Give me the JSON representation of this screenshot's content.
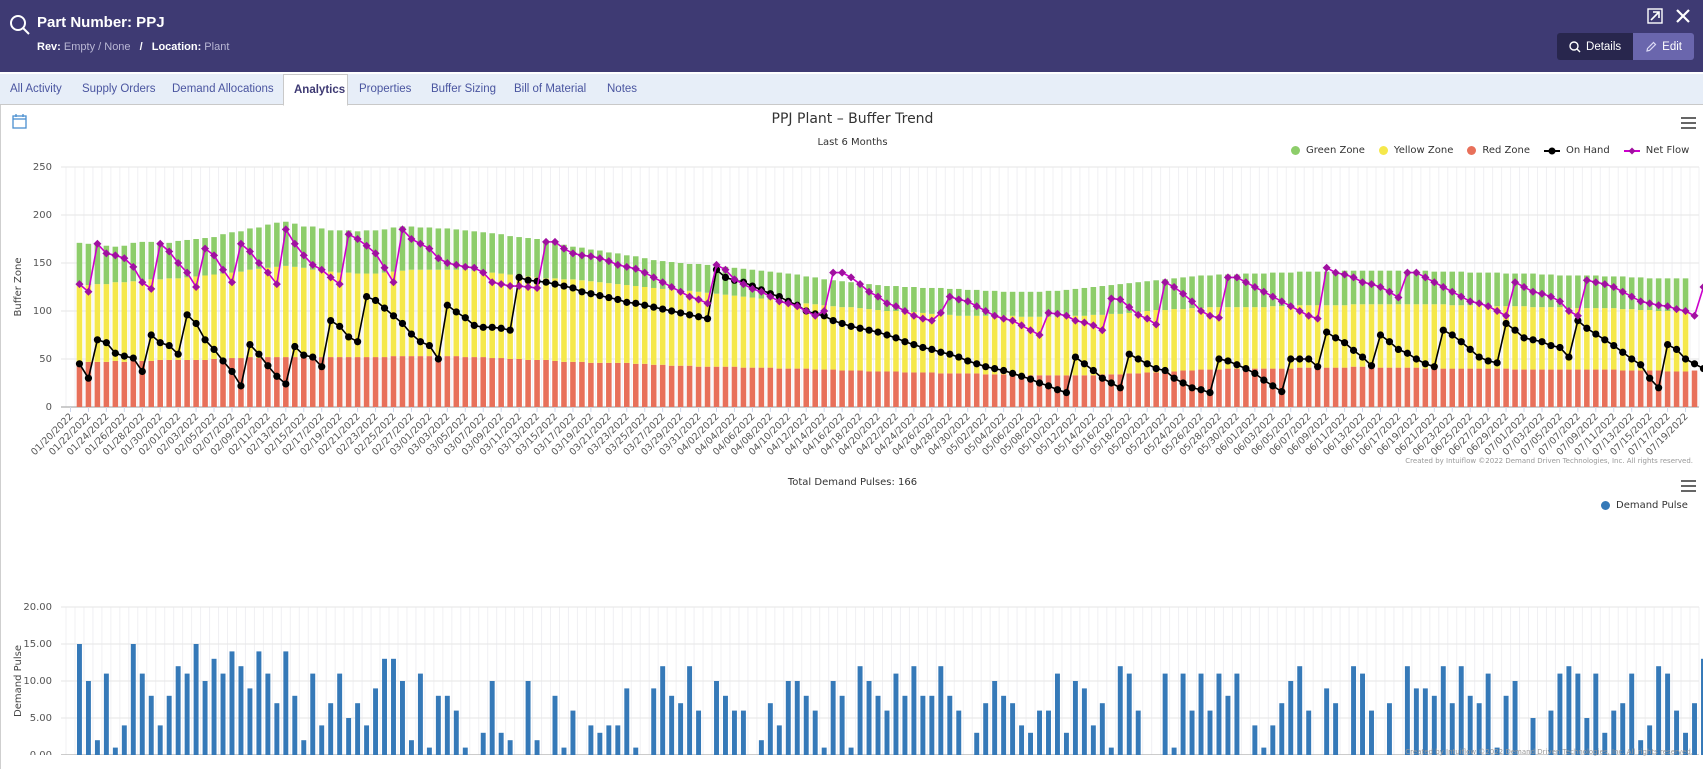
{
  "header": {
    "title": "Part Number: PPJ",
    "rev_label": "Rev:",
    "rev_value": "Empty / None",
    "separator": "/",
    "location_label": "Location:",
    "location_value": "Plant",
    "icons": {
      "search": "search-icon",
      "popout": "external-link-icon",
      "close": "close-icon"
    },
    "details_label": "Details",
    "edit_label": "Edit"
  },
  "tabs": [
    {
      "label": "All Activity",
      "active": false
    },
    {
      "label": "Supply Orders",
      "active": false
    },
    {
      "label": "Demand Allocations",
      "active": false
    },
    {
      "label": "Analytics",
      "active": true
    },
    {
      "label": "Properties",
      "active": false
    },
    {
      "label": "Buffer Sizing",
      "active": false
    },
    {
      "label": "Bill of Material",
      "active": false
    },
    {
      "label": "Notes",
      "active": false
    }
  ],
  "colors": {
    "header_bg": "#3e3a73",
    "green_zone": "#8dcd6a",
    "yellow_zone": "#f5e84b",
    "red_zone": "#e8705a",
    "on_hand": "#000000",
    "net_flow": "#cc00cc",
    "demand_pulse": "#3579b8"
  },
  "credits": "Created by Intuiflow ©2022 Demand Driven Technologies, Inc. All rights reserved.",
  "chart_data": [
    {
      "type": "bar",
      "stacked": true,
      "title": "PPJ Plant – Buffer Trend",
      "subtitle": "Last 6 Months",
      "xlabel": "",
      "ylabel": "Buffer Zone",
      "ylim": [
        0,
        250
      ],
      "yticks": [
        0,
        50,
        100,
        150,
        200,
        250
      ],
      "start_date": "2022-01-20",
      "days": 182,
      "xtick_every_days": 2,
      "grid": true,
      "legend_position": "top-right",
      "legend": [
        "Green Zone",
        "Yellow Zone",
        "Red Zone",
        "On Hand",
        "Net Flow"
      ],
      "red_zone_top": [
        null,
        46,
        47,
        47,
        47,
        48,
        47,
        48,
        48,
        48,
        49,
        49,
        49,
        49,
        49,
        49,
        50,
        50,
        51,
        51,
        52,
        51,
        52,
        52,
        52,
        52,
        52,
        52,
        52,
        52,
        52,
        52,
        52,
        52,
        52,
        52,
        53,
        53,
        53,
        53,
        53,
        53,
        53,
        53,
        52,
        52,
        52,
        51,
        51,
        50,
        50,
        49,
        49,
        49,
        48,
        47,
        47,
        47,
        46,
        46,
        46,
        46,
        46,
        45,
        45,
        44,
        44,
        43,
        43,
        43,
        42,
        42,
        42,
        42,
        42,
        41,
        41,
        41,
        41,
        40,
        40,
        40,
        40,
        39,
        39,
        39,
        38,
        38,
        38,
        37,
        37,
        37,
        37,
        36,
        36,
        36,
        36,
        35,
        35,
        35,
        35,
        35,
        34,
        34,
        34,
        34,
        34,
        33,
        33,
        33,
        33,
        33,
        33,
        33,
        33,
        34,
        34,
        34,
        35,
        35,
        36,
        36,
        37,
        37,
        38,
        38,
        39,
        39,
        39,
        40,
        40,
        40,
        40,
        40,
        40,
        40,
        40,
        41,
        41,
        41,
        41,
        41,
        41,
        42,
        42,
        41,
        41,
        41,
        41,
        41,
        41,
        40,
        40,
        40,
        40,
        40,
        40,
        40,
        40,
        40,
        40,
        39,
        39,
        39,
        39,
        39,
        39,
        39,
        39,
        39,
        39,
        39,
        39,
        38,
        38,
        38,
        38,
        38,
        37,
        37,
        37,
        38
      ],
      "yellow_zone_top": [
        null,
        126,
        127,
        128,
        128,
        130,
        130,
        131,
        132,
        133,
        133,
        134,
        134,
        135,
        136,
        137,
        138,
        139,
        140,
        141,
        143,
        144,
        145,
        146,
        147,
        146,
        145,
        143,
        142,
        141,
        140,
        140,
        139,
        139,
        139,
        140,
        141,
        142,
        143,
        143,
        143,
        143,
        143,
        143,
        143,
        142,
        141,
        140,
        139,
        138,
        137,
        136,
        135,
        134,
        134,
        133,
        133,
        132,
        131,
        130,
        129,
        128,
        127,
        126,
        125,
        124,
        123,
        122,
        121,
        121,
        120,
        119,
        118,
        117,
        116,
        115,
        114,
        113,
        112,
        111,
        110,
        109,
        108,
        107,
        106,
        105,
        104,
        104,
        103,
        102,
        101,
        100,
        100,
        99,
        99,
        98,
        97,
        96,
        96,
        95,
        95,
        95,
        95,
        95,
        95,
        95,
        94,
        94,
        94,
        94,
        94,
        95,
        95,
        95,
        96,
        96,
        97,
        97,
        98,
        99,
        100,
        101,
        101,
        102,
        102,
        103,
        103,
        104,
        104,
        104,
        104,
        104,
        104,
        104,
        105,
        105,
        105,
        106,
        106,
        106,
        106,
        106,
        106,
        107,
        107,
        107,
        107,
        107,
        107,
        107,
        107,
        107,
        107,
        107,
        106,
        106,
        106,
        106,
        106,
        105,
        105,
        105,
        105,
        104,
        104,
        104,
        104,
        103,
        103,
        103,
        103,
        103,
        103,
        102,
        102,
        101,
        101,
        100,
        100,
        100,
        100
      ],
      "green_zone_top": [
        null,
        171,
        170,
        170,
        168,
        167,
        168,
        171,
        172,
        172,
        170,
        171,
        173,
        174,
        175,
        176,
        177,
        180,
        182,
        183,
        186,
        187,
        190,
        192,
        193,
        191,
        188,
        188,
        186,
        184,
        184,
        184,
        183,
        184,
        184,
        185,
        187,
        188,
        188,
        187,
        187,
        186,
        186,
        185,
        184,
        183,
        182,
        181,
        180,
        178,
        177,
        176,
        175,
        173,
        171,
        169,
        167,
        166,
        164,
        163,
        161,
        160,
        158,
        157,
        155,
        153,
        152,
        151,
        150,
        149,
        149,
        148,
        147,
        146,
        145,
        144,
        143,
        142,
        141,
        140,
        139,
        138,
        136,
        135,
        133,
        132,
        131,
        130,
        129,
        128,
        127,
        126,
        126,
        125,
        125,
        124,
        124,
        124,
        123,
        123,
        122,
        122,
        121,
        121,
        120,
        120,
        120,
        120,
        120,
        121,
        121,
        122,
        123,
        124,
        125,
        126,
        127,
        128,
        129,
        130,
        131,
        132,
        133,
        134,
        135,
        136,
        137,
        137,
        138,
        138,
        138,
        139,
        139,
        139,
        140,
        140,
        140,
        141,
        141,
        141,
        141,
        141,
        142,
        142,
        142,
        142,
        142,
        142,
        142,
        142,
        142,
        142,
        141,
        141,
        141,
        141,
        140,
        140,
        140,
        140,
        139,
        139,
        139,
        139,
        138,
        138,
        137,
        137,
        137,
        137,
        137,
        136,
        136,
        136,
        135,
        135,
        134,
        134,
        134,
        134,
        134
      ],
      "on_hand": [
        null,
        45,
        30,
        70,
        67,
        56,
        53,
        51,
        37,
        75,
        67,
        64,
        55,
        96,
        87,
        70,
        60,
        48,
        37,
        22,
        65,
        55,
        43,
        32,
        24,
        63,
        54,
        52,
        42,
        90,
        84,
        73,
        68,
        115,
        111,
        103,
        95,
        87,
        76,
        68,
        64,
        50,
        106,
        99,
        93,
        85,
        83,
        83,
        82,
        80,
        135,
        132,
        131,
        130,
        128,
        126,
        124,
        120,
        118,
        116,
        114,
        112,
        109,
        108,
        106,
        104,
        102,
        100,
        98,
        96,
        94,
        92,
        143,
        135,
        132,
        130,
        126,
        122,
        118,
        115,
        110,
        106,
        100,
        97,
        95,
        90,
        87,
        84,
        82,
        80,
        78,
        75,
        72,
        68,
        65,
        62,
        60,
        57,
        55,
        52,
        48,
        45,
        42,
        40,
        38,
        35,
        32,
        29,
        25,
        22,
        18,
        15,
        52,
        45,
        38,
        30,
        25,
        20,
        55,
        50,
        45,
        40,
        38,
        30,
        25,
        20,
        18,
        15,
        50,
        48,
        44,
        40,
        35,
        28,
        22,
        16,
        50,
        50,
        50,
        42,
        78,
        72,
        67,
        59,
        52,
        43,
        75,
        68,
        60,
        56,
        50,
        45,
        42,
        80,
        75,
        68,
        60,
        52,
        48,
        46,
        87,
        80,
        72,
        70,
        68,
        64,
        62,
        52,
        90,
        82,
        76,
        70,
        64,
        57,
        50,
        44,
        30,
        20,
        65,
        60,
        50,
        45,
        40,
        85,
        82,
        80,
        75,
        68
      ],
      "net_flow": [
        null,
        128,
        120,
        170,
        160,
        158,
        155,
        146,
        130,
        123,
        170,
        162,
        150,
        140,
        125,
        165,
        158,
        143,
        130,
        170,
        162,
        150,
        140,
        128,
        185,
        170,
        158,
        148,
        143,
        135,
        128,
        180,
        175,
        168,
        160,
        145,
        130,
        185,
        175,
        170,
        165,
        155,
        150,
        148,
        146,
        145,
        140,
        130,
        128,
        126,
        126,
        125,
        124,
        172,
        172,
        165,
        160,
        158,
        157,
        155,
        152,
        148,
        146,
        144,
        140,
        135,
        130,
        125,
        120,
        115,
        112,
        108,
        148,
        143,
        133,
        128,
        123,
        120,
        115,
        110,
        108,
        105,
        100,
        95,
        100,
        140,
        140,
        135,
        128,
        120,
        115,
        108,
        105,
        100,
        95,
        92,
        90,
        98,
        115,
        112,
        110,
        105,
        100,
        95,
        92,
        90,
        85,
        80,
        75,
        98,
        97,
        95,
        90,
        88,
        85,
        80,
        113,
        112,
        104,
        96,
        92,
        86,
        130,
        125,
        118,
        110,
        100,
        95,
        93,
        135,
        135,
        130,
        125,
        120,
        115,
        110,
        105,
        100,
        95,
        92,
        145,
        140,
        138,
        135,
        130,
        128,
        125,
        120,
        114,
        140,
        140,
        135,
        130,
        125,
        120,
        115,
        110,
        108,
        105,
        100,
        95,
        130,
        125,
        120,
        118,
        115,
        110,
        100,
        95,
        132,
        130,
        128,
        125,
        120,
        115,
        110,
        108,
        106,
        105,
        102,
        100,
        95,
        125,
        124,
        118,
        105
      ]
    },
    {
      "type": "bar",
      "title": "Total Demand Pulses: 166",
      "xlabel": "",
      "ylabel": "Demand Pulse",
      "ylim": [
        0,
        20
      ],
      "yticks": [
        "0.00",
        "5.00",
        "10.00",
        "15.00",
        "20.00"
      ],
      "start_date": "2022-01-20",
      "days": 182,
      "xtick_every_days": 2,
      "grid": true,
      "legend_position": "top-right",
      "legend": [
        "Demand Pulse"
      ],
      "values": [
        0,
        15,
        10,
        2,
        11,
        1,
        4,
        15,
        11,
        8,
        4,
        8,
        12,
        11,
        15,
        10,
        13,
        11,
        14,
        12,
        9,
        14,
        11,
        7,
        14,
        8,
        2,
        11,
        4,
        7,
        11,
        5,
        7,
        4,
        9,
        13,
        13,
        10,
        2,
        11,
        1,
        8,
        8,
        6,
        1,
        0,
        3,
        10,
        3,
        2,
        0,
        10,
        2,
        0,
        8,
        1,
        6,
        0,
        4,
        3,
        4,
        4,
        9,
        1,
        0,
        9,
        12,
        8,
        7,
        12,
        6,
        0,
        10,
        8,
        6,
        6,
        0,
        2,
        7,
        4,
        10,
        10,
        8,
        6,
        1,
        10,
        8,
        1,
        12,
        10,
        8,
        6,
        11,
        8,
        12,
        8,
        8,
        12,
        8,
        6,
        0,
        3,
        7,
        10,
        8,
        7,
        4,
        3,
        6,
        6,
        11,
        3,
        10,
        9,
        4,
        7,
        1,
        12,
        11,
        6,
        0,
        0,
        11,
        1,
        11,
        6,
        11,
        6,
        11,
        8,
        11,
        0,
        4,
        1,
        4,
        7,
        10,
        12,
        6,
        0,
        9,
        7,
        0,
        12,
        11,
        6,
        0,
        7,
        0,
        12,
        9,
        9,
        8,
        12,
        7,
        12,
        8,
        7,
        11,
        1,
        8,
        10,
        0,
        5,
        0,
        6,
        11,
        12,
        11,
        5,
        11,
        3,
        6,
        7,
        11,
        2,
        4,
        12,
        11,
        6,
        3,
        7,
        13
      ]
    }
  ]
}
